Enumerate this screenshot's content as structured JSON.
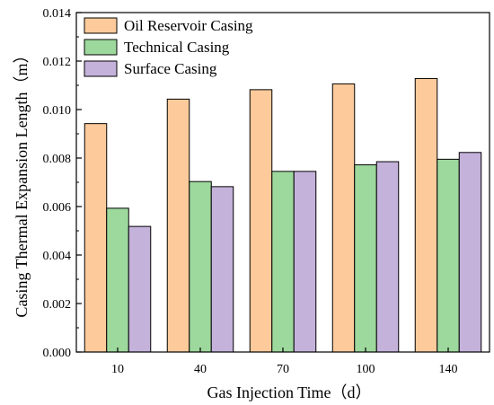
{
  "chart_data": {
    "type": "bar",
    "title": "",
    "xlabel": "Gas Injection Time（d）",
    "ylabel": "Casing Thermal Expansion Length（m）",
    "categories": [
      "10",
      "40",
      "70",
      "100",
      "140"
    ],
    "series": [
      {
        "name": "Oil Reservoir Casing",
        "color": "#fdcb9b",
        "values": [
          0.00942,
          0.01043,
          0.01082,
          0.01106,
          0.01128
        ]
      },
      {
        "name": "Technical Casing",
        "color": "#9dd89c",
        "values": [
          0.00593,
          0.00703,
          0.00745,
          0.00772,
          0.00795
        ]
      },
      {
        "name": "Surface Casing",
        "color": "#c4b2db",
        "values": [
          0.00518,
          0.00682,
          0.00745,
          0.00785,
          0.00823
        ]
      }
    ],
    "ylim": [
      0,
      0.014
    ],
    "yticks": [
      "0.000",
      "0.002",
      "0.004",
      "0.006",
      "0.008",
      "0.010",
      "0.012",
      "0.014"
    ],
    "grid": false,
    "legend_position": "top-left"
  }
}
